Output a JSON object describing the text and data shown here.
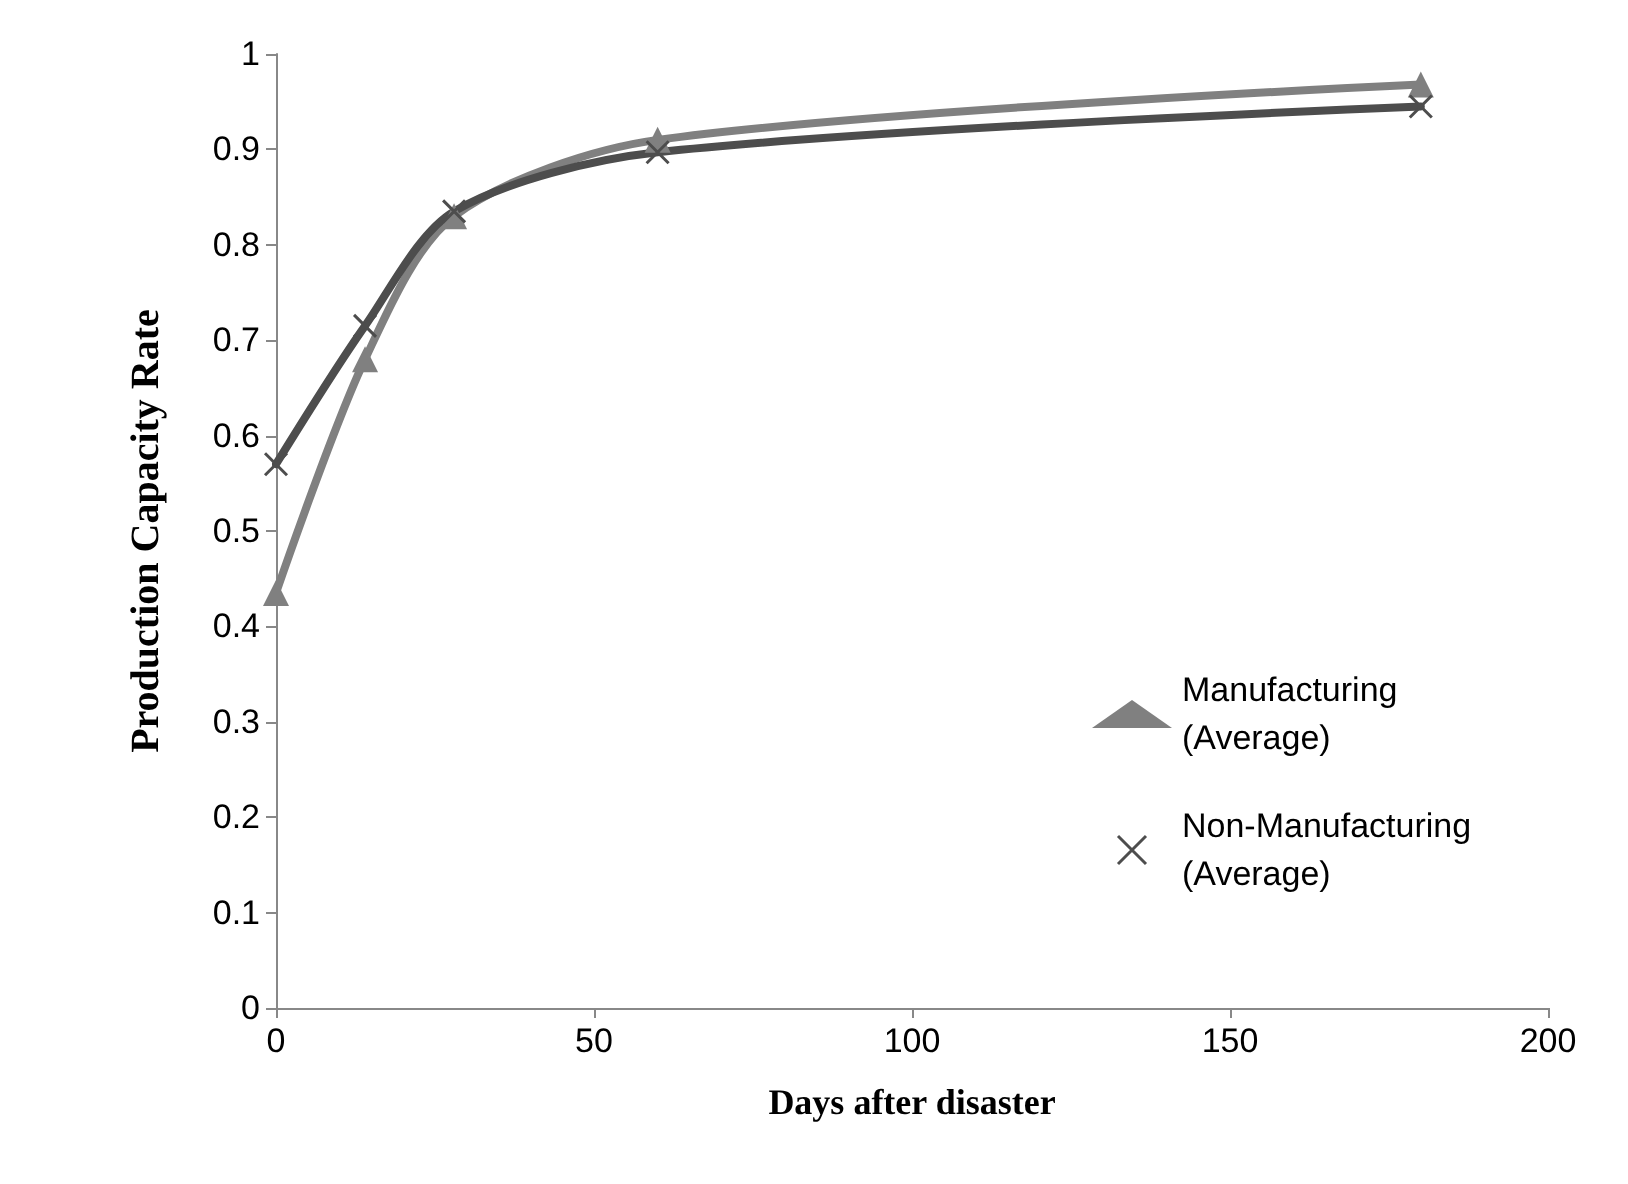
{
  "chart_data": {
    "type": "line",
    "xlabel": "Days after disaster",
    "ylabel": "Production Capacity Rate",
    "xlim": [
      0,
      200
    ],
    "xticks": [
      0,
      50,
      100,
      150,
      200
    ],
    "ylim": [
      0,
      1
    ],
    "yticks": [
      0,
      0.1,
      0.2,
      0.3,
      0.4,
      0.5,
      0.6,
      0.7,
      0.8,
      0.9,
      1
    ],
    "grid": false,
    "legend": "right",
    "line_style": "solid",
    "series": [
      {
        "name": "Manufacturing (Average)",
        "color": "#808080",
        "marker": "triangle",
        "x": [
          0,
          14,
          28,
          60,
          180
        ],
        "values": [
          0.435,
          0.68,
          0.83,
          0.91,
          0.968
        ]
      },
      {
        "name": "Non-Manufacturing (Average)",
        "color": "#4d4d4d",
        "marker": "cross",
        "x": [
          0,
          14,
          28,
          60,
          180
        ],
        "values": [
          0.57,
          0.715,
          0.835,
          0.897,
          0.945
        ]
      }
    ]
  }
}
